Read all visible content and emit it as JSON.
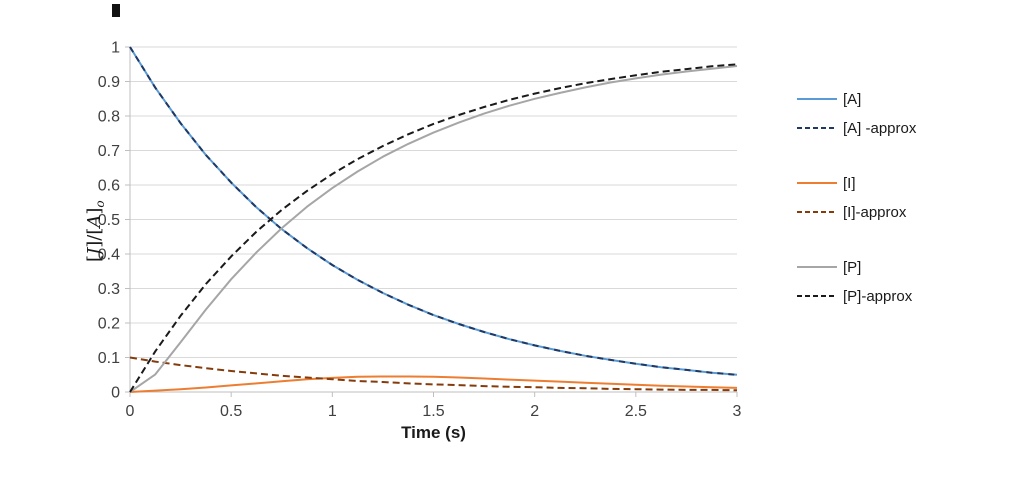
{
  "page": {
    "background": "#ffffff"
  },
  "chart_data": {
    "type": "line",
    "title": "",
    "xlabel": "Time (s)",
    "ylabel": "[J]/[A]o",
    "ylabel_parts": {
      "open1": "[",
      "var1": "J",
      "mid": "]/[",
      "var2": "A",
      "close2": "]",
      "sub": "o"
    },
    "xlim": [
      0,
      3
    ],
    "ylim": [
      0,
      1
    ],
    "grid": "horizontal",
    "legend_position": "right",
    "axis_color": "#BFBFBF",
    "grid_color": "#D9D9D9",
    "tick_label_color": "#404040",
    "x_ticks": [
      "0",
      "0.5",
      "1",
      "1.5",
      "2",
      "2.5",
      "3"
    ],
    "x_tick_values": [
      0,
      0.5,
      1,
      1.5,
      2,
      2.5,
      3
    ],
    "y_ticks": [
      "0",
      "0.1",
      "0.2",
      "0.3",
      "0.4",
      "0.5",
      "0.6",
      "0.7",
      "0.8",
      "0.9",
      "1"
    ],
    "y_tick_values": [
      0,
      0.1,
      0.2,
      0.3,
      0.4,
      0.5,
      0.6,
      0.7,
      0.8,
      0.9,
      1
    ],
    "x": [
      0,
      0.125,
      0.25,
      0.375,
      0.5,
      0.625,
      0.75,
      0.875,
      1,
      1.125,
      1.25,
      1.375,
      1.5,
      1.625,
      1.75,
      1.875,
      2,
      2.125,
      2.25,
      2.375,
      2.5,
      2.625,
      2.75,
      2.875,
      3
    ],
    "series": [
      {
        "id": "a",
        "name": "[A]",
        "color": "#5B9BD5",
        "dash": "solid",
        "values": [
          1,
          0.882,
          0.779,
          0.687,
          0.607,
          0.535,
          0.472,
          0.417,
          0.368,
          0.325,
          0.287,
          0.253,
          0.223,
          0.197,
          0.174,
          0.153,
          0.135,
          0.119,
          0.105,
          0.093,
          0.082,
          0.072,
          0.064,
          0.056,
          0.05
        ]
      },
      {
        "id": "a-approx",
        "name": "[A] -approx",
        "color": "#1F3864",
        "dash": "dashed",
        "values": [
          1,
          0.882,
          0.779,
          0.687,
          0.607,
          0.535,
          0.472,
          0.417,
          0.368,
          0.325,
          0.287,
          0.253,
          0.223,
          0.197,
          0.174,
          0.153,
          0.135,
          0.119,
          0.105,
          0.093,
          0.082,
          0.072,
          0.064,
          0.056,
          0.05
        ]
      },
      {
        "id": "i",
        "name": "[I]",
        "color": "#ED7D31",
        "dash": "solid",
        "values": [
          0,
          0.004,
          0.008,
          0.013,
          0.019,
          0.025,
          0.031,
          0.037,
          0.041,
          0.044,
          0.045,
          0.045,
          0.044,
          0.042,
          0.039,
          0.036,
          0.033,
          0.03,
          0.027,
          0.024,
          0.021,
          0.018,
          0.016,
          0.014,
          0.012
        ]
      },
      {
        "id": "i-approx",
        "name": "[I]-approx",
        "color": "#843C0C",
        "dash": "dashed",
        "values": [
          0.1,
          0.088,
          0.078,
          0.069,
          0.061,
          0.054,
          0.047,
          0.042,
          0.037,
          0.032,
          0.029,
          0.025,
          0.022,
          0.02,
          0.017,
          0.015,
          0.014,
          0.012,
          0.011,
          0.009,
          0.008,
          0.007,
          0.006,
          0.006,
          0.005
        ]
      },
      {
        "id": "p",
        "name": "[P]",
        "color": "#A6A6A6",
        "dash": "solid",
        "values": [
          0,
          0.051,
          0.144,
          0.239,
          0.327,
          0.405,
          0.475,
          0.537,
          0.591,
          0.639,
          0.682,
          0.719,
          0.752,
          0.781,
          0.807,
          0.83,
          0.85,
          0.867,
          0.883,
          0.897,
          0.909,
          0.92,
          0.929,
          0.937,
          0.945
        ]
      },
      {
        "id": "p-approx",
        "name": "[P]-approx",
        "color": "#1A1A1A",
        "dash": "dashed",
        "values": [
          0,
          0.118,
          0.221,
          0.313,
          0.393,
          0.465,
          0.528,
          0.583,
          0.632,
          0.675,
          0.713,
          0.747,
          0.777,
          0.803,
          0.826,
          0.847,
          0.865,
          0.881,
          0.895,
          0.907,
          0.918,
          0.928,
          0.936,
          0.944,
          0.95
        ]
      }
    ]
  }
}
